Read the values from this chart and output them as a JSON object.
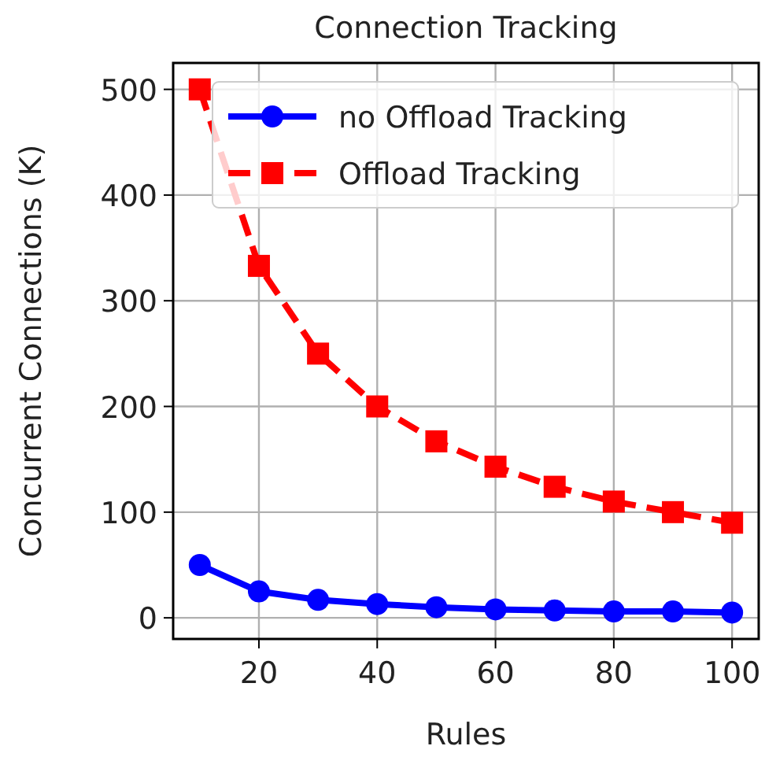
{
  "chart_data": {
    "type": "line",
    "title": "Connection Tracking",
    "xlabel": "Rules",
    "ylabel": "Concurrent Connections (K)",
    "x": [
      10,
      20,
      30,
      40,
      50,
      60,
      70,
      80,
      90,
      100
    ],
    "series": [
      {
        "name": "no Offload Tracking",
        "color": "#0000ff",
        "marker": "circle",
        "line_style": "solid",
        "values": [
          50,
          25,
          17,
          13,
          10,
          8,
          7,
          6,
          6,
          5
        ]
      },
      {
        "name": "Offload Tracking",
        "color": "#ff0000",
        "marker": "square",
        "line_style": "dashed",
        "values": [
          500,
          333,
          250,
          200,
          167,
          143,
          124,
          110,
          100,
          90
        ]
      }
    ],
    "xlim": [
      5.5,
      104.5
    ],
    "ylim": [
      -20,
      525
    ],
    "xticks": [
      20,
      40,
      60,
      80,
      100
    ],
    "yticks": [
      0,
      100,
      200,
      300,
      400,
      500
    ],
    "grid": true,
    "legend": "top"
  }
}
